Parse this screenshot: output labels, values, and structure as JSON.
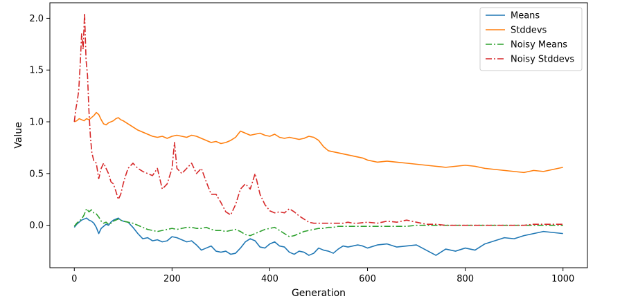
{
  "chart_data": {
    "type": "line",
    "title": "",
    "xlabel": "Generation",
    "ylabel": "Value",
    "xlim": [
      -50,
      1050
    ],
    "ylim": [
      -0.41,
      2.15
    ],
    "xticks": [
      0,
      200,
      400,
      600,
      800,
      1000
    ],
    "yticks": [
      0.0,
      0.5,
      1.0,
      1.5,
      2.0
    ],
    "xtick_labels": [
      "0",
      "200",
      "400",
      "600",
      "800",
      "1000"
    ],
    "ytick_labels": [
      "0.0",
      "0.5",
      "1.0",
      "1.5",
      "2.0"
    ],
    "grid": false,
    "legend_position": "top-right",
    "series": [
      {
        "name": "Means",
        "color": "#1f77b4",
        "linestyle": "solid",
        "x": [
          0,
          5,
          10,
          15,
          20,
          25,
          30,
          35,
          40,
          45,
          50,
          55,
          60,
          65,
          70,
          75,
          80,
          85,
          90,
          95,
          100,
          110,
          120,
          130,
          140,
          150,
          160,
          170,
          180,
          190,
          200,
          210,
          220,
          230,
          240,
          250,
          260,
          270,
          280,
          290,
          300,
          310,
          320,
          330,
          340,
          350,
          360,
          370,
          380,
          390,
          400,
          410,
          420,
          430,
          440,
          450,
          460,
          470,
          480,
          490,
          500,
          510,
          520,
          530,
          540,
          550,
          560,
          570,
          580,
          590,
          600,
          620,
          640,
          660,
          680,
          700,
          720,
          740,
          760,
          780,
          800,
          820,
          840,
          860,
          880,
          900,
          920,
          940,
          960,
          980,
          1000
        ],
        "y": [
          -0.02,
          0.01,
          0.03,
          0.05,
          0.06,
          0.07,
          0.05,
          0.04,
          0.02,
          -0.02,
          -0.08,
          -0.03,
          -0.01,
          0.01,
          0.0,
          0.03,
          0.05,
          0.06,
          0.07,
          0.05,
          0.04,
          0.03,
          -0.02,
          -0.08,
          -0.13,
          -0.12,
          -0.15,
          -0.14,
          -0.16,
          -0.15,
          -0.11,
          -0.12,
          -0.14,
          -0.16,
          -0.15,
          -0.19,
          -0.24,
          -0.22,
          -0.2,
          -0.25,
          -0.26,
          -0.25,
          -0.28,
          -0.27,
          -0.22,
          -0.16,
          -0.13,
          -0.15,
          -0.21,
          -0.22,
          -0.18,
          -0.16,
          -0.2,
          -0.21,
          -0.26,
          -0.28,
          -0.25,
          -0.26,
          -0.29,
          -0.27,
          -0.22,
          -0.24,
          -0.25,
          -0.27,
          -0.23,
          -0.2,
          -0.21,
          -0.2,
          -0.19,
          -0.2,
          -0.22,
          -0.19,
          -0.18,
          -0.21,
          -0.2,
          -0.19,
          -0.24,
          -0.29,
          -0.23,
          -0.25,
          -0.22,
          -0.24,
          -0.18,
          -0.15,
          -0.12,
          -0.13,
          -0.1,
          -0.08,
          -0.06,
          -0.07,
          -0.08
        ]
      },
      {
        "name": "Stddevs",
        "color": "#ff7f0e",
        "linestyle": "solid",
        "x": [
          0,
          5,
          10,
          15,
          20,
          25,
          30,
          35,
          40,
          45,
          50,
          55,
          60,
          65,
          70,
          75,
          80,
          85,
          90,
          95,
          100,
          110,
          120,
          130,
          140,
          150,
          160,
          170,
          180,
          190,
          200,
          210,
          220,
          230,
          240,
          250,
          260,
          270,
          280,
          290,
          300,
          310,
          320,
          330,
          340,
          350,
          360,
          370,
          380,
          390,
          400,
          410,
          420,
          430,
          440,
          450,
          460,
          470,
          480,
          490,
          500,
          510,
          520,
          530,
          540,
          550,
          560,
          570,
          580,
          590,
          600,
          620,
          640,
          660,
          680,
          700,
          720,
          740,
          760,
          780,
          800,
          820,
          840,
          860,
          880,
          900,
          920,
          940,
          960,
          980,
          1000
        ],
        "y": [
          1.0,
          1.01,
          1.03,
          1.02,
          1.01,
          1.03,
          1.02,
          1.04,
          1.06,
          1.09,
          1.07,
          1.02,
          0.98,
          0.97,
          0.99,
          1.0,
          1.01,
          1.03,
          1.04,
          1.02,
          1.01,
          0.98,
          0.95,
          0.92,
          0.9,
          0.88,
          0.86,
          0.85,
          0.86,
          0.84,
          0.86,
          0.87,
          0.86,
          0.85,
          0.87,
          0.86,
          0.84,
          0.82,
          0.8,
          0.81,
          0.79,
          0.8,
          0.82,
          0.85,
          0.91,
          0.89,
          0.87,
          0.88,
          0.89,
          0.87,
          0.86,
          0.88,
          0.85,
          0.84,
          0.85,
          0.84,
          0.83,
          0.84,
          0.86,
          0.85,
          0.82,
          0.76,
          0.72,
          0.71,
          0.7,
          0.69,
          0.68,
          0.67,
          0.66,
          0.65,
          0.63,
          0.61,
          0.62,
          0.61,
          0.6,
          0.59,
          0.58,
          0.57,
          0.56,
          0.57,
          0.58,
          0.57,
          0.55,
          0.54,
          0.53,
          0.52,
          0.51,
          0.53,
          0.52,
          0.54,
          0.56
        ]
      },
      {
        "name": "Noisy Means",
        "color": "#2ca02c",
        "linestyle": "dashdot",
        "x": [
          0,
          5,
          10,
          15,
          20,
          25,
          30,
          35,
          40,
          45,
          50,
          55,
          60,
          65,
          70,
          75,
          80,
          85,
          90,
          95,
          100,
          110,
          120,
          130,
          140,
          150,
          160,
          170,
          180,
          190,
          200,
          210,
          220,
          230,
          240,
          250,
          260,
          270,
          280,
          290,
          300,
          310,
          320,
          330,
          340,
          350,
          360,
          370,
          380,
          390,
          400,
          410,
          420,
          430,
          440,
          450,
          460,
          470,
          480,
          490,
          500,
          510,
          520,
          530,
          540,
          550,
          560,
          570,
          580,
          590,
          600,
          620,
          640,
          660,
          680,
          700,
          720,
          740,
          760,
          780,
          800,
          820,
          840,
          860,
          880,
          900,
          920,
          940,
          960,
          980,
          1000
        ],
        "y": [
          -0.01,
          0.02,
          0.04,
          0.06,
          0.1,
          0.16,
          0.13,
          0.15,
          0.12,
          0.11,
          0.08,
          0.04,
          0.02,
          0.03,
          0.01,
          0.02,
          0.04,
          0.05,
          0.06,
          0.05,
          0.04,
          0.03,
          0.02,
          0.0,
          -0.02,
          -0.04,
          -0.05,
          -0.06,
          -0.05,
          -0.04,
          -0.03,
          -0.04,
          -0.03,
          -0.02,
          -0.02,
          -0.03,
          -0.03,
          -0.02,
          -0.04,
          -0.05,
          -0.05,
          -0.06,
          -0.05,
          -0.04,
          -0.06,
          -0.09,
          -0.1,
          -0.08,
          -0.06,
          -0.04,
          -0.03,
          -0.02,
          -0.05,
          -0.08,
          -0.11,
          -0.1,
          -0.08,
          -0.06,
          -0.05,
          -0.04,
          -0.03,
          -0.03,
          -0.02,
          -0.02,
          -0.01,
          -0.01,
          -0.01,
          -0.01,
          -0.01,
          -0.01,
          -0.01,
          -0.01,
          -0.01,
          -0.01,
          -0.01,
          0.0,
          0.0,
          0.0,
          0.0,
          0.0,
          0.0,
          0.0,
          0.0,
          0.0,
          0.0,
          0.0,
          0.0,
          0.0,
          0.0,
          0.0,
          0.0
        ]
      },
      {
        "name": "Noisy Stddevs",
        "color": "#d62728",
        "linestyle": "dashdot",
        "x": [
          0,
          3,
          6,
          9,
          12,
          15,
          18,
          21,
          24,
          27,
          30,
          33,
          36,
          40,
          45,
          50,
          55,
          60,
          65,
          70,
          75,
          80,
          85,
          90,
          95,
          100,
          105,
          110,
          120,
          130,
          140,
          150,
          160,
          170,
          180,
          190,
          200,
          205,
          210,
          220,
          230,
          240,
          250,
          260,
          270,
          280,
          290,
          300,
          310,
          320,
          330,
          340,
          350,
          360,
          370,
          380,
          390,
          400,
          410,
          420,
          430,
          440,
          450,
          460,
          470,
          480,
          490,
          500,
          510,
          520,
          530,
          540,
          550,
          560,
          570,
          580,
          600,
          620,
          640,
          660,
          680,
          700,
          720,
          740,
          760,
          780,
          800,
          820,
          840,
          860,
          880,
          900,
          920,
          940,
          960,
          980,
          1000
        ],
        "y": [
          1.0,
          1.12,
          1.2,
          1.3,
          1.55,
          1.85,
          1.7,
          2.05,
          1.6,
          1.45,
          1.1,
          0.85,
          0.7,
          0.62,
          0.6,
          0.45,
          0.55,
          0.6,
          0.55,
          0.5,
          0.42,
          0.4,
          0.33,
          0.25,
          0.3,
          0.4,
          0.48,
          0.55,
          0.6,
          0.55,
          0.52,
          0.5,
          0.48,
          0.55,
          0.35,
          0.4,
          0.55,
          0.8,
          0.55,
          0.5,
          0.55,
          0.6,
          0.5,
          0.55,
          0.42,
          0.3,
          0.3,
          0.22,
          0.13,
          0.1,
          0.2,
          0.35,
          0.4,
          0.35,
          0.5,
          0.3,
          0.2,
          0.14,
          0.12,
          0.13,
          0.12,
          0.16,
          0.13,
          0.09,
          0.06,
          0.03,
          0.02,
          0.02,
          0.02,
          0.02,
          0.02,
          0.02,
          0.02,
          0.03,
          0.02,
          0.02,
          0.03,
          0.02,
          0.04,
          0.03,
          0.05,
          0.03,
          0.01,
          0.01,
          0.0,
          0.0,
          0.0,
          0.0,
          0.0,
          0.0,
          0.0,
          0.0,
          0.0,
          0.01,
          0.01,
          0.01,
          0.01
        ]
      }
    ]
  }
}
